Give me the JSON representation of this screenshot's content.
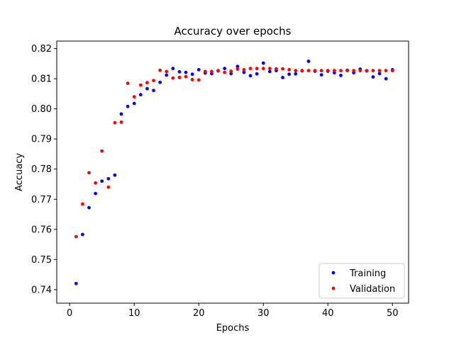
{
  "chart_data": {
    "type": "scatter",
    "title": "Accuracy over epochs",
    "xlabel": "Epochs",
    "ylabel": "Accuacy",
    "xlim": [
      -2,
      52.5
    ],
    "ylim": [
      0.7355,
      0.8225
    ],
    "xticks": [
      0,
      10,
      20,
      30,
      40,
      50
    ],
    "yticks": [
      0.74,
      0.75,
      0.76,
      0.77,
      0.78,
      0.79,
      0.8,
      0.81,
      0.82
    ],
    "ytick_labels": [
      "0.74",
      "0.75",
      "0.76",
      "0.77",
      "0.78",
      "0.79",
      "0.80",
      "0.81",
      "0.82"
    ],
    "grid": false,
    "legend_position": "lower-right",
    "series": [
      {
        "name": "Training",
        "color": "#0000ff",
        "x": [
          1,
          2,
          3,
          4,
          5,
          6,
          7,
          8,
          9,
          10,
          11,
          12,
          13,
          14,
          15,
          16,
          17,
          18,
          19,
          20,
          21,
          22,
          23,
          24,
          25,
          26,
          27,
          28,
          29,
          30,
          31,
          32,
          33,
          34,
          35,
          36,
          37,
          38,
          39,
          40,
          41,
          42,
          43,
          44,
          45,
          46,
          47,
          48,
          49,
          50
        ],
        "y": [
          0.742,
          0.7583,
          0.7672,
          0.7719,
          0.776,
          0.7768,
          0.778,
          0.7983,
          0.8008,
          0.8018,
          0.8047,
          0.8067,
          0.8061,
          0.8088,
          0.8112,
          0.8134,
          0.8123,
          0.8121,
          0.8115,
          0.813,
          0.8119,
          0.8117,
          0.8126,
          0.8134,
          0.8117,
          0.8141,
          0.8121,
          0.811,
          0.8116,
          0.8152,
          0.8124,
          0.8127,
          0.8104,
          0.8115,
          0.8116,
          0.8126,
          0.8158,
          0.8125,
          0.8113,
          0.8125,
          0.812,
          0.8111,
          0.8128,
          0.812,
          0.8132,
          0.8126,
          0.8106,
          0.8117,
          0.81,
          0.813
        ]
      },
      {
        "name": "Validation",
        "color": "#ff0000",
        "x": [
          1,
          2,
          3,
          4,
          5,
          6,
          7,
          8,
          9,
          10,
          11,
          12,
          13,
          14,
          15,
          16,
          17,
          18,
          19,
          20,
          21,
          22,
          23,
          24,
          25,
          26,
          27,
          28,
          29,
          30,
          31,
          32,
          33,
          34,
          35,
          36,
          37,
          38,
          39,
          40,
          41,
          42,
          43,
          44,
          45,
          46,
          47,
          48,
          49,
          50
        ],
        "y": [
          0.7576,
          0.7684,
          0.7788,
          0.7754,
          0.786,
          0.774,
          0.7954,
          0.7956,
          0.8085,
          0.804,
          0.8079,
          0.8087,
          0.8094,
          0.8128,
          0.8124,
          0.8102,
          0.8104,
          0.8107,
          0.8097,
          0.8096,
          0.8124,
          0.8124,
          0.8127,
          0.8121,
          0.8125,
          0.8132,
          0.813,
          0.8134,
          0.8134,
          0.8134,
          0.8134,
          0.8133,
          0.8133,
          0.813,
          0.8127,
          0.8127,
          0.8127,
          0.8127,
          0.8127,
          0.8127,
          0.8127,
          0.8127,
          0.8127,
          0.8127,
          0.8127,
          0.8127,
          0.8127,
          0.8127,
          0.8127,
          0.8127
        ]
      }
    ]
  }
}
